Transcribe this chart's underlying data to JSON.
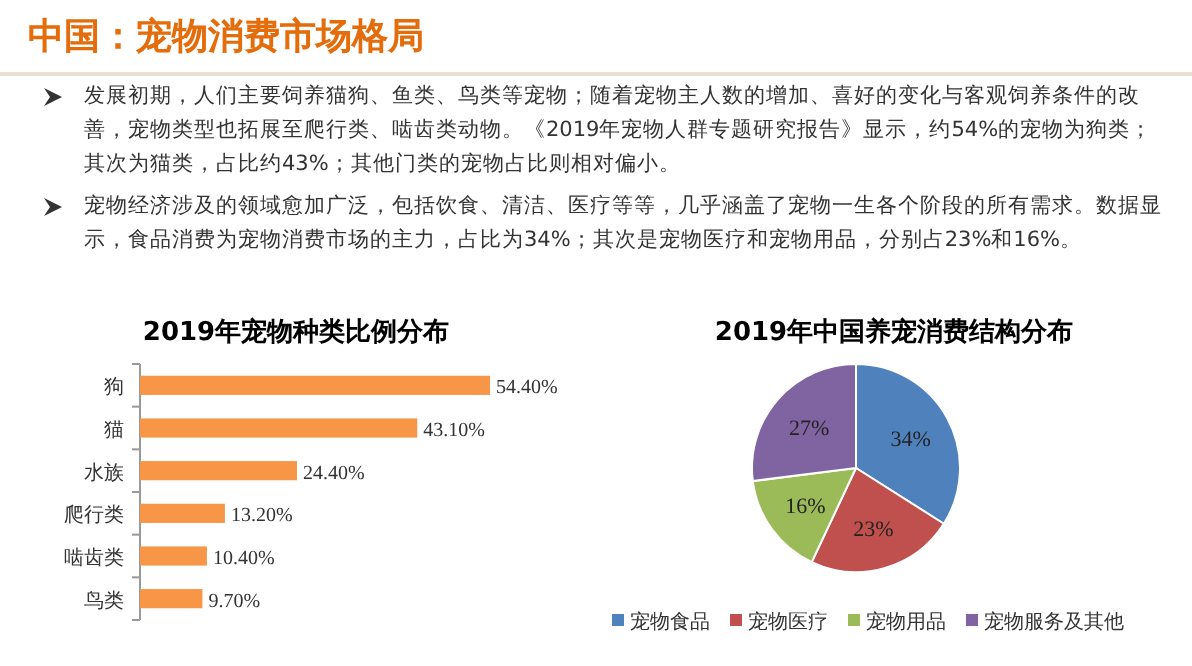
{
  "chart_data": [
    {
      "type": "other",
      "title": "中国：宠物消费市场格局",
      "annotations": [
        "发展初期，人们主要饲养猫狗、鱼类、鸟类等宠物；随着宠物主人数的增加、喜好的变化与客观饲养条件的改善，宠物类型也拓展至爬行类、啮齿类动物。《2019年宠物人群专题研究报告》显示，约54%的宠物为狗类；其次为猫类，占比约43%；其他门类的宠物占比则相对偏小。",
        "宠物经济涉及的领域愈加广泛，包括饮食、清洁、医疗等等，几乎涵盖了宠物一生各个阶段的所有需求。数据显示，食品消费为宠物消费市场的主力，占比为34%；其次是宠物医疗和宠物用品，分别占23%和16%。"
      ]
    },
    {
      "type": "bar",
      "orientation": "horizontal",
      "title": "2019年宠物种类比例分布",
      "categories": [
        "狗",
        "猫",
        "水族",
        "爬行类",
        "啮齿类",
        "鸟类"
      ],
      "values": [
        54.4,
        43.1,
        24.4,
        13.2,
        10.4,
        9.7
      ],
      "value_labels": [
        "54.40%",
        "43.10%",
        "24.40%",
        "13.20%",
        "10.40%",
        "9.70%"
      ],
      "color": "#f79646"
    },
    {
      "type": "pie",
      "title": "2019年中国养宠消费结构分布",
      "categories": [
        "宠物食品",
        "宠物医疗",
        "宠物用品",
        "宠物服务及其他"
      ],
      "values": [
        34,
        23,
        16,
        27
      ],
      "colors": [
        "#4f81bd",
        "#c0504d",
        "#9bbb59",
        "#8064a2"
      ],
      "value_labels": [
        "34%",
        "23%",
        "16%",
        "27%"
      ],
      "legend": "bottom"
    }
  ]
}
